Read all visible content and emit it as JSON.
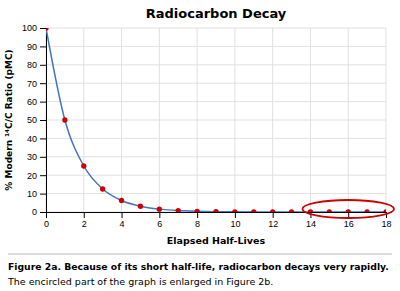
{
  "chart_data": {
    "type": "line",
    "title": "Radiocarbon Decay",
    "xlabel": "Elapsed Half-Lives",
    "ylabel": "% Modern ¹⁴C/C  Ratio (pMC)",
    "annotations": [
      "Figure 2a. Because of its short half-life, radiocarbon decays very rapidly.",
      "The encircled part of the graph is enlarged in Figure 2b."
    ],
    "x": [
      0,
      1,
      2,
      3,
      4,
      5,
      6,
      7,
      8,
      9,
      10,
      11,
      12,
      13,
      14,
      15,
      16,
      17,
      18
    ],
    "series": [
      {
        "type": "line",
        "color": "#4472c4",
        "values": [
          100.0,
          50.0,
          25.0,
          12.5,
          6.25,
          3.125,
          1.5625,
          0.78125,
          0.390625,
          0.195313,
          0.097656,
          0.048828,
          0.024414,
          0.012207,
          0.006104,
          0.003052,
          0.001526,
          0.000763,
          0.000381
        ]
      },
      {
        "type": "scatter",
        "color": "#cc0000",
        "marker": "circle",
        "values": [
          100.0,
          50.0,
          25.0,
          12.5,
          6.25,
          3.125,
          1.5625,
          0.78125,
          0.390625,
          0.195313,
          0.097656,
          0.048828,
          0.024414,
          0.012207,
          0.006104,
          0.003052,
          0.001526,
          0.000763,
          0.000381
        ]
      }
    ],
    "xlim": [
      0,
      18
    ],
    "ylim": [
      0,
      100
    ],
    "xticks": [
      0,
      2,
      4,
      6,
      8,
      10,
      12,
      14,
      16,
      18
    ],
    "yticks": [
      0,
      10,
      20,
      30,
      40,
      50,
      60,
      70,
      80,
      90,
      100
    ],
    "grid": true
  }
}
